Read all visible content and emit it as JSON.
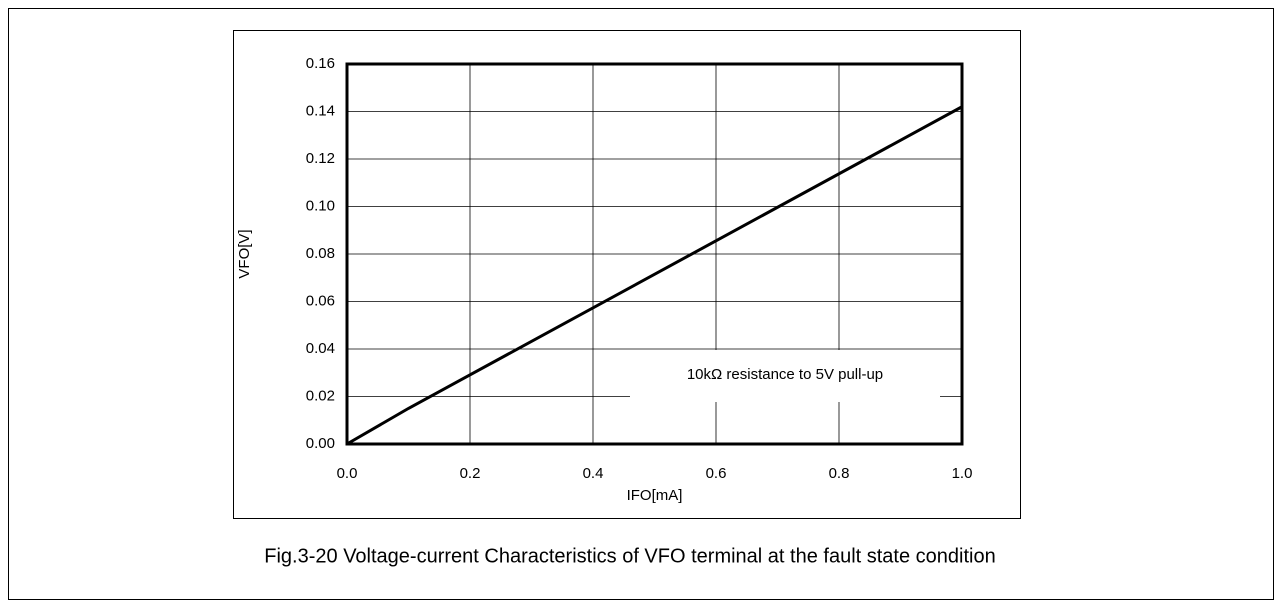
{
  "chart_data": {
    "type": "line",
    "x_label": "IFO[mA]",
    "y_label": "VFO[V]",
    "annotation": "10kΩ resistance to 5V  pull-up",
    "caption": "Fig.3-20 Voltage-current Characteristics of VFO terminal at the fault state condition",
    "x": [
      0,
      0.1,
      1.0
    ],
    "series": [
      {
        "name": null,
        "color": "#000000",
        "values": [
          0,
          0.015,
          0.142
        ]
      }
    ],
    "xlim": [
      0,
      1.0
    ],
    "ylim": [
      0,
      0.16
    ],
    "xticks": [
      {
        "value": 0,
        "label": "0.0"
      },
      0.2,
      0.4,
      0.6,
      0.8,
      {
        "value": 1.0,
        "label": "1.0"
      }
    ],
    "yticks": [
      {
        "value": 0,
        "label": "0.00"
      },
      {
        "value": 0.02,
        "label": "0.02"
      },
      {
        "value": 0.04,
        "label": "0.04"
      },
      {
        "value": 0.06,
        "label": "0.06"
      },
      {
        "value": 0.08,
        "label": "0.08"
      },
      {
        "value": 0.1,
        "label": "0.10"
      },
      {
        "value": 0.12,
        "label": "0.12"
      },
      {
        "value": 0.14,
        "label": "0.14"
      },
      {
        "value": 0.16,
        "label": "0.16"
      }
    ],
    "grid": true
  }
}
